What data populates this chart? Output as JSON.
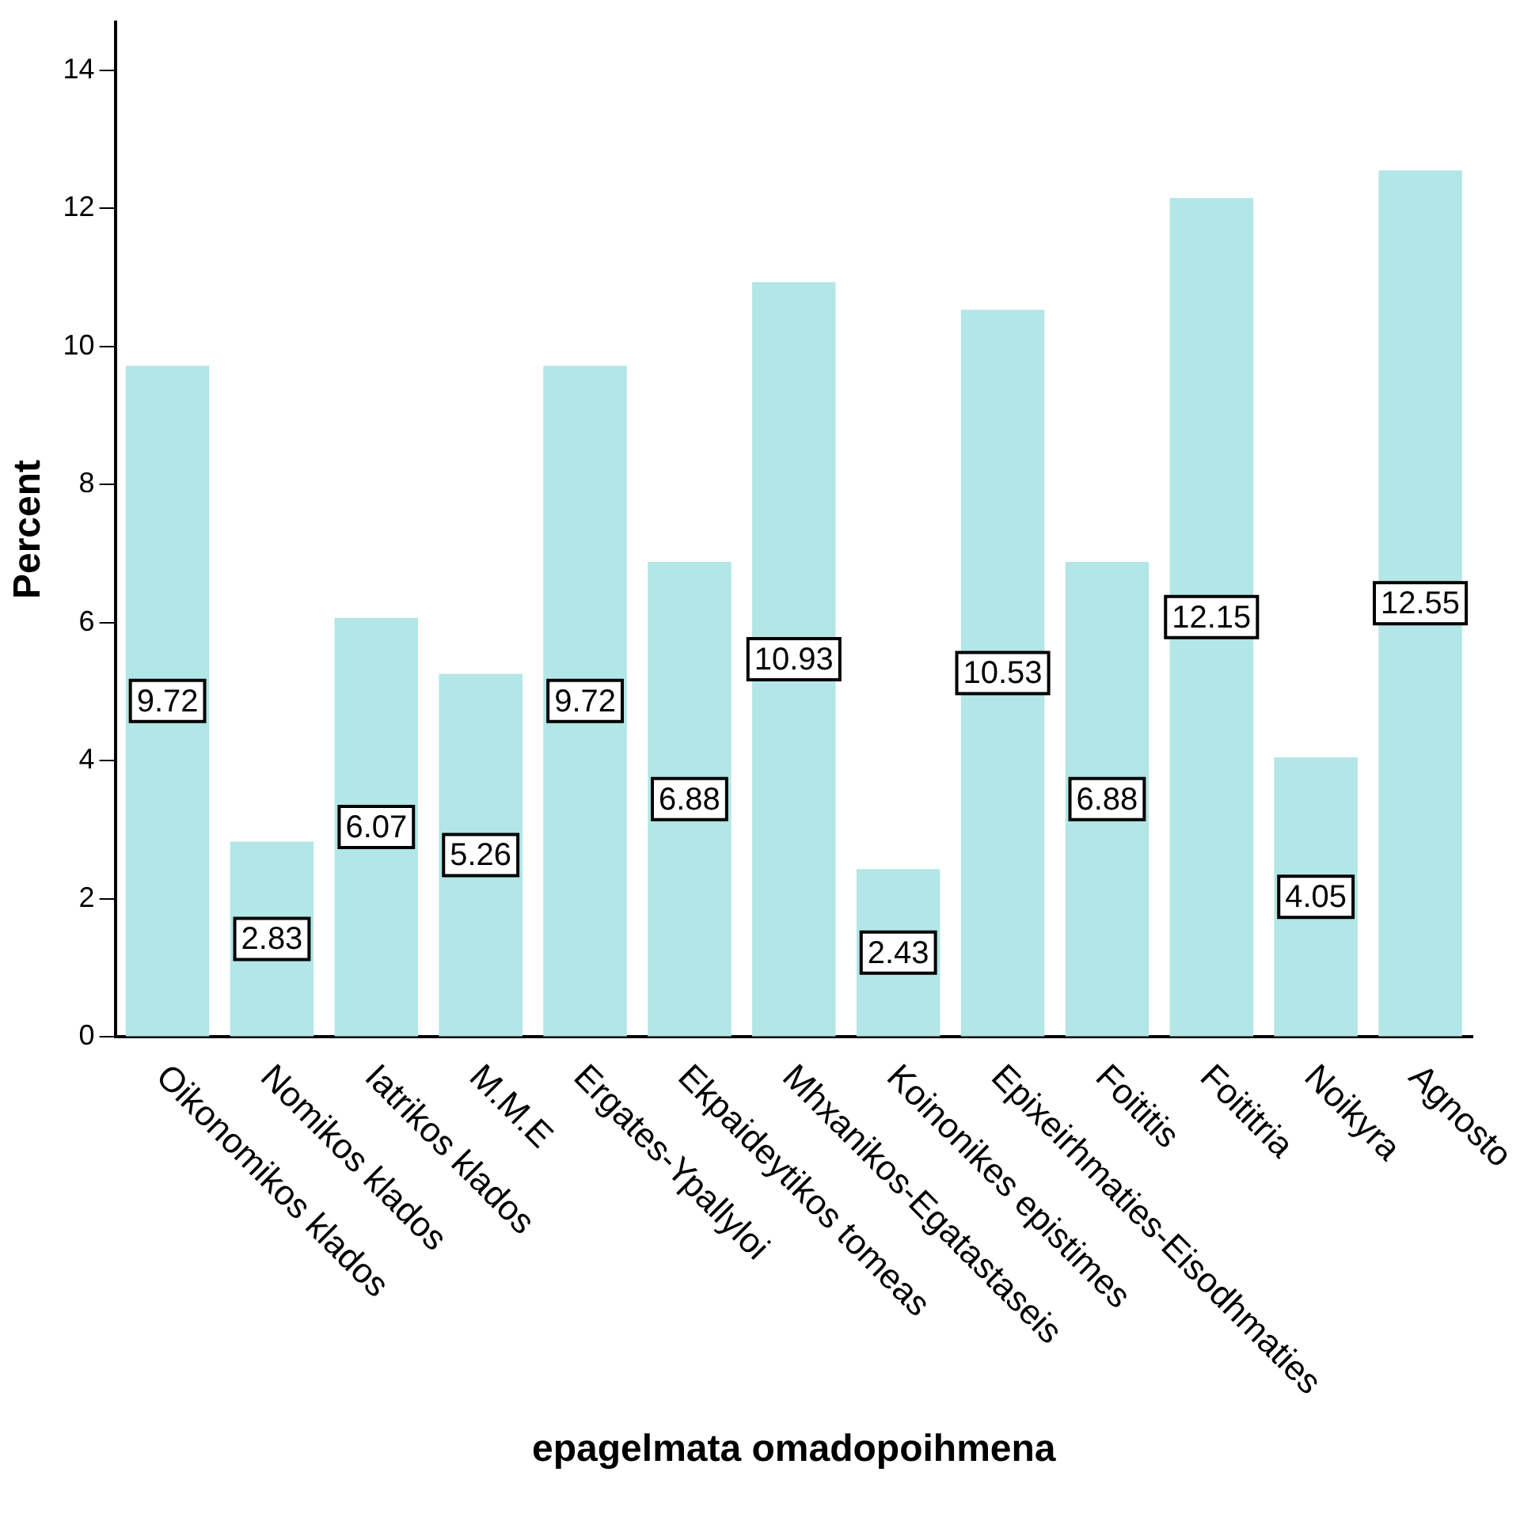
{
  "chart_data": {
    "type": "bar",
    "xlabel": "epagelmata omadopoihmena",
    "ylabel": "Percent",
    "categories": [
      "Oikonomikos klados",
      "Nomikos klados",
      "Iatrikos klados",
      "M.M.E",
      "Ergates-Ypallyloi",
      "Ekpaideytikos tomeas",
      "Mhxanikos-Egatastaseis",
      "Koinonikes epistimes",
      "Epixeirhmaties-Eisodhmaties",
      "Foititis",
      "Foititria",
      "Noikyra",
      "Agnosto"
    ],
    "values": [
      9.72,
      2.83,
      6.07,
      5.26,
      9.72,
      6.88,
      10.93,
      2.43,
      10.53,
      6.88,
      12.15,
      4.05,
      12.55
    ],
    "color": "#b3e6e6",
    "ylim": [
      0,
      14.7
    ],
    "yticks": [
      0,
      2,
      4,
      6,
      8,
      10,
      12,
      14
    ],
    "data_labels": true,
    "grid": false,
    "legend": false
  }
}
